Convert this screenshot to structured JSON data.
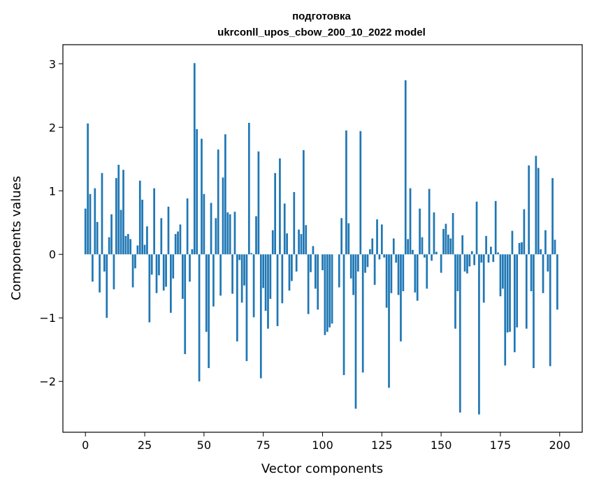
{
  "chart_data": {
    "type": "bar",
    "title": "подготовка",
    "subtitle": "ukrconll_upos_cbow_200_10_2022 model",
    "xlabel": "Vector components",
    "ylabel": "Components values",
    "xlim": [
      -9.5,
      209.5
    ],
    "ylim": [
      -2.8,
      3.3
    ],
    "xticks": [
      0,
      25,
      50,
      75,
      100,
      125,
      150,
      175,
      200
    ],
    "xtick_labels": [
      "0",
      "25",
      "50",
      "75",
      "100",
      "125",
      "150",
      "175",
      "200"
    ],
    "yticks": [
      -2,
      -1,
      0,
      1,
      2,
      3
    ],
    "ytick_labels": [
      "−2",
      "−1",
      "0",
      "1",
      "2",
      "3"
    ],
    "bar_color": "#1f77b4",
    "grid": false,
    "legend": "none",
    "values": [
      0.72,
      2.06,
      0.95,
      -0.43,
      1.04,
      0.51,
      -0.6,
      1.28,
      -0.27,
      -1.0,
      0.27,
      0.63,
      -0.55,
      1.2,
      1.41,
      0.7,
      1.33,
      0.29,
      0.32,
      0.24,
      -0.52,
      -0.22,
      0.14,
      1.16,
      0.86,
      0.15,
      0.44,
      -1.07,
      -0.32,
      1.04,
      -0.61,
      -0.33,
      0.57,
      -0.57,
      -0.51,
      0.75,
      -0.92,
      -0.38,
      0.32,
      0.36,
      0.47,
      -0.7,
      -1.57,
      0.88,
      -0.43,
      0.08,
      3.01,
      1.97,
      -2.0,
      1.82,
      0.95,
      -1.22,
      -1.79,
      0.81,
      -0.82,
      0.57,
      1.65,
      -0.65,
      1.21,
      1.89,
      0.66,
      0.63,
      -0.62,
      0.67,
      -1.37,
      -0.09,
      -0.76,
      -0.49,
      -1.68,
      2.07,
      0.02,
      -0.99,
      0.6,
      1.62,
      -1.95,
      -0.53,
      -0.89,
      -1.17,
      -0.7,
      0.38,
      1.28,
      -1.13,
      1.51,
      -0.77,
      0.8,
      0.33,
      -0.57,
      -0.42,
      0.98,
      -0.27,
      0.39,
      0.32,
      1.64,
      0.46,
      -0.94,
      -0.28,
      0.13,
      -0.54,
      -0.87,
      0.0,
      -0.25,
      -1.27,
      -1.22,
      -1.15,
      -1.09,
      0.0,
      0.0,
      -0.52,
      0.57,
      -1.9,
      1.95,
      0.49,
      -0.38,
      -0.64,
      -2.43,
      -0.27,
      1.94,
      -1.86,
      -0.29,
      -0.2,
      0.08,
      0.25,
      -0.48,
      0.55,
      -0.08,
      0.47,
      -0.05,
      -0.84,
      -2.1,
      -0.61,
      0.25,
      -0.13,
      -0.64,
      -1.37,
      -0.58,
      2.74,
      0.24,
      1.04,
      0.07,
      -0.6,
      -0.73,
      0.72,
      0.27,
      -0.05,
      -0.54,
      1.03,
      -0.1,
      0.66,
      0.04,
      0.0,
      -0.29,
      0.4,
      0.48,
      0.31,
      0.25,
      0.65,
      -1.17,
      -0.58,
      -2.49,
      0.3,
      -0.27,
      -0.3,
      -0.19,
      0.05,
      -0.17,
      0.83,
      -2.52,
      -0.13,
      -0.76,
      0.29,
      -0.13,
      0.12,
      -0.12,
      0.84,
      0.03,
      -0.66,
      -0.54,
      -1.75,
      -1.23,
      -1.22,
      0.37,
      -1.54,
      -1.15,
      0.18,
      0.19,
      0.71,
      -1.17,
      1.4,
      -0.58,
      -1.79,
      1.55,
      1.36,
      0.08,
      -0.61,
      0.38,
      -0.27,
      -1.76,
      1.2,
      0.23,
      -0.87
    ]
  }
}
